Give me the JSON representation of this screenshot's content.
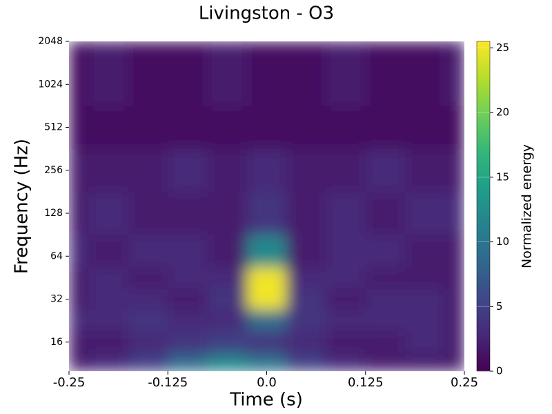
{
  "chart_data": {
    "type": "heatmap",
    "title": "Livingston - O3",
    "xlabel": "Time (s)",
    "ylabel": "Frequency (Hz)",
    "colorbar_label": "Normalized energy",
    "colormap": "viridis",
    "yscale": "log",
    "x": [
      -0.25,
      -0.2,
      -0.15,
      -0.1,
      -0.05,
      0,
      0.05,
      0.1,
      0.15,
      0.2,
      0.25
    ],
    "y": [
      11,
      16,
      23,
      32,
      45,
      64,
      128,
      256,
      512,
      1024
    ],
    "z": [
      [
        2,
        3,
        5,
        9,
        12,
        10,
        5,
        3,
        2,
        2,
        2
      ],
      [
        2,
        2,
        3,
        4,
        5,
        4,
        3,
        2,
        2,
        3,
        2
      ],
      [
        3,
        3,
        4,
        3,
        3,
        9,
        4,
        3,
        3,
        3,
        2
      ],
      [
        2,
        3,
        3,
        2,
        4,
        25,
        4,
        2,
        3,
        3,
        2
      ],
      [
        2,
        3,
        2,
        3,
        3,
        25,
        3,
        3,
        2,
        2,
        2
      ],
      [
        3,
        2,
        3,
        3,
        2,
        12,
        2,
        3,
        3,
        2,
        2
      ],
      [
        2,
        3,
        2,
        2,
        2,
        4,
        2,
        3,
        2,
        3,
        3
      ],
      [
        2,
        2,
        2,
        3,
        2,
        3,
        2,
        2,
        3,
        2,
        2
      ],
      [
        1,
        1,
        1,
        1,
        1,
        1,
        1,
        1,
        1,
        1,
        1
      ],
      [
        1,
        2,
        1,
        1,
        2,
        1,
        1,
        2,
        1,
        1,
        2
      ]
    ],
    "xlim": [
      -0.25,
      0.25
    ],
    "xticks": [
      -0.25,
      -0.125,
      {
        "value": 0,
        "label": "0.0"
      },
      0.125,
      0.25
    ],
    "ylim": [
      10,
      2048
    ],
    "yticks": [
      16,
      32,
      64,
      128,
      256,
      512,
      1024,
      2048
    ],
    "clim": [
      0,
      25.5
    ],
    "cticks": [
      0,
      5,
      10,
      15,
      20,
      25
    ]
  }
}
